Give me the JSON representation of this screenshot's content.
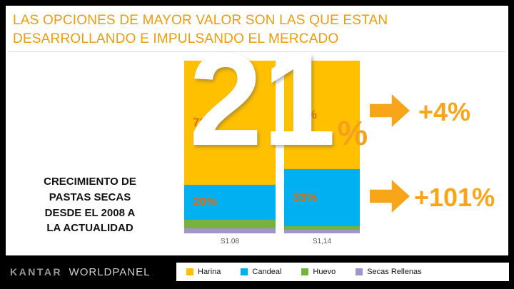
{
  "title": {
    "line1": "LAS OPCIONES DE MAYOR VALOR SON LAS QUE ESTAN",
    "line2": "DESARROLLANDO E IMPULSANDO EL MERCADO"
  },
  "left_caption": {
    "text": "CRECIMIENTO DE\nPASTAS SECAS\nDESDE EL 2008 A\nLA ACTUALIDAD"
  },
  "big_number": {
    "value": "21",
    "percent_sign": "%"
  },
  "growth_callouts": [
    {
      "label": "+4%"
    },
    {
      "label": "+101%"
    }
  ],
  "chart_data": {
    "type": "bar",
    "stacked": true,
    "categories": [
      "S1.08",
      "S1,14"
    ],
    "series": [
      {
        "name": "Harina",
        "color": "#FFC000",
        "values": [
          72,
          63
        ],
        "value_labels": [
          "72%",
          "63%"
        ]
      },
      {
        "name": "Candeal",
        "color": "#00B0F0",
        "values": [
          20,
          33
        ],
        "value_labels": [
          "20%",
          "33%"
        ]
      },
      {
        "name": "Huevo",
        "color": "#76B23C",
        "values": [
          5,
          2
        ],
        "value_labels": [
          "",
          ""
        ]
      },
      {
        "name": "Secas Rellenas",
        "color": "#A295C9",
        "values": [
          3,
          2
        ],
        "value_labels": [
          "",
          ""
        ]
      }
    ],
    "ylim": [
      0,
      100
    ],
    "grid": false,
    "legend_position": "bottom"
  },
  "logo": {
    "kantar": "KANTAR",
    "worldpanel": "WORLDPANEL"
  },
  "colors": {
    "accent_orange": "#EF9B0B",
    "callout_orange": "#F9A51A",
    "segment_label_orange": "#E36C09",
    "slide_background": "#FFFFFF",
    "frame_background": "#000000"
  }
}
